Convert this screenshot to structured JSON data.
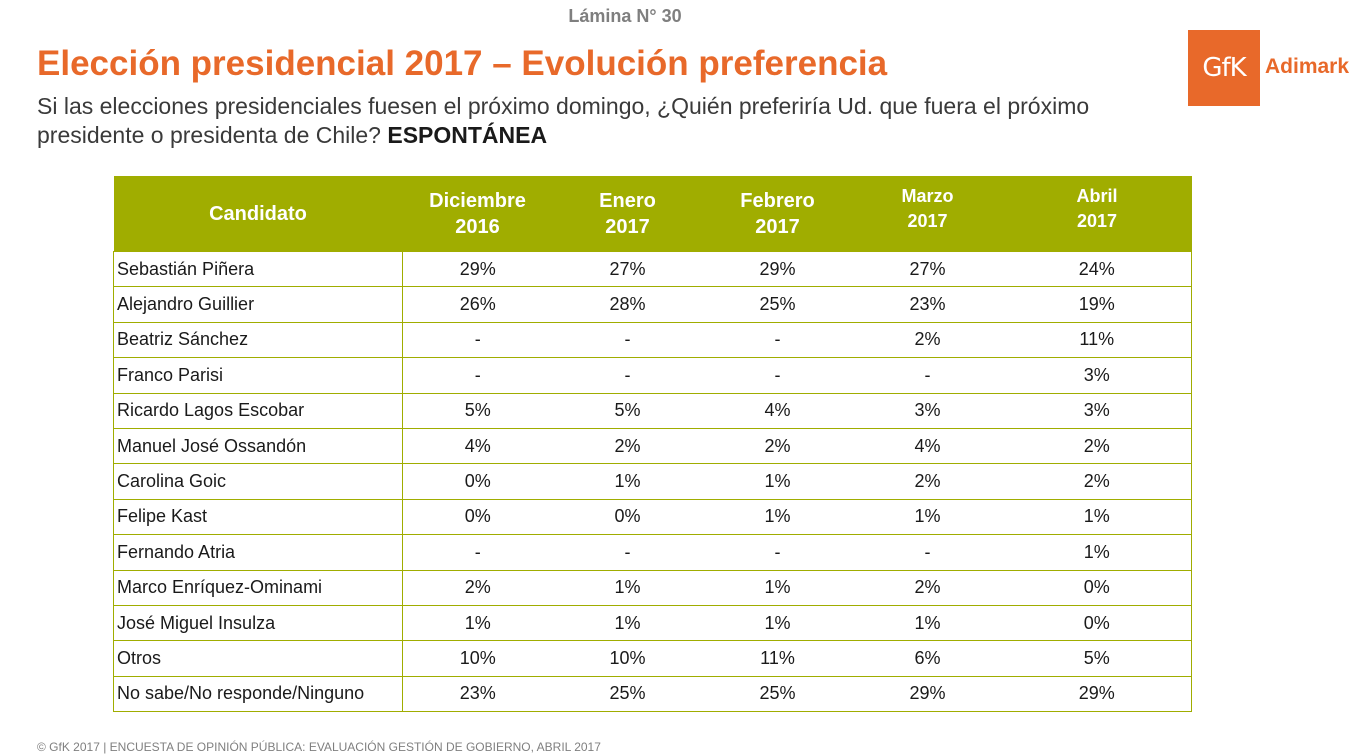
{
  "slide_number": "Lámina N° 30",
  "title": "Elección presidencial 2017 – Evolución preferencia",
  "subtitle": {
    "text": "Si las elecciones presidenciales fuesen el próximo domingo, ¿Quién preferiría Ud. que fuera el próximo presidente o presidenta de Chile?",
    "emphasis": "ESPONTÁNEA"
  },
  "logo": {
    "mark": "GfK",
    "name": "Adimark"
  },
  "colors": {
    "accent_orange": "#e8692a",
    "header_green": "#a0ad00"
  },
  "table": {
    "header_candidate": "Candidato",
    "columns": [
      {
        "line1": "Diciembre",
        "line2": "2016"
      },
      {
        "line1": "Enero",
        "line2": "2017"
      },
      {
        "line1": "Febrero",
        "line2": "2017"
      },
      {
        "line1": "Marzo",
        "line2": "2017"
      },
      {
        "line1": "Abril",
        "line2": "2017"
      }
    ],
    "rows": [
      {
        "name": "Sebastián Piñera",
        "values": [
          "29%",
          "27%",
          "29%",
          "27%",
          "24%"
        ]
      },
      {
        "name": "Alejandro  Guillier",
        "values": [
          "26%",
          "28%",
          "25%",
          "23%",
          "19%"
        ]
      },
      {
        "name": "Beatriz Sánchez",
        "values": [
          "-",
          "-",
          "-",
          "2%",
          "11%"
        ]
      },
      {
        "name": "Franco Parisi",
        "values": [
          "-",
          "-",
          "-",
          "-",
          "3%"
        ]
      },
      {
        "name": "Ricardo Lagos Escobar",
        "values": [
          "5%",
          "5%",
          "4%",
          "3%",
          "3%"
        ]
      },
      {
        "name": "Manuel José Ossandón",
        "values": [
          "4%",
          "2%",
          "2%",
          "4%",
          "2%"
        ]
      },
      {
        "name": "Carolina Goic",
        "values": [
          "0%",
          "1%",
          "1%",
          "2%",
          "2%"
        ]
      },
      {
        "name": "Felipe Kast",
        "values": [
          "0%",
          "0%",
          "1%",
          "1%",
          "1%"
        ]
      },
      {
        "name": "Fernando Atria",
        "values": [
          "-",
          "-",
          "-",
          "-",
          "1%"
        ]
      },
      {
        "name": "Marco Enríquez-Ominami",
        "values": [
          "2%",
          "1%",
          "1%",
          "2%",
          "0%"
        ]
      },
      {
        "name": "José Miguel Insulza",
        "values": [
          "1%",
          "1%",
          "1%",
          "1%",
          "0%"
        ]
      },
      {
        "name": "Otros",
        "values": [
          "10%",
          "10%",
          "11%",
          "6%",
          "5%"
        ]
      },
      {
        "name": "No sabe/No responde/Ninguno",
        "values": [
          "23%",
          "25%",
          "25%",
          "29%",
          "29%"
        ]
      }
    ]
  },
  "footer": "© GfK 2017 | ENCUESTA DE OPINIÓN PÚBLICA: EVALUACIÓN GESTIÓN DE GOBIERNO, ABRIL 2017"
}
